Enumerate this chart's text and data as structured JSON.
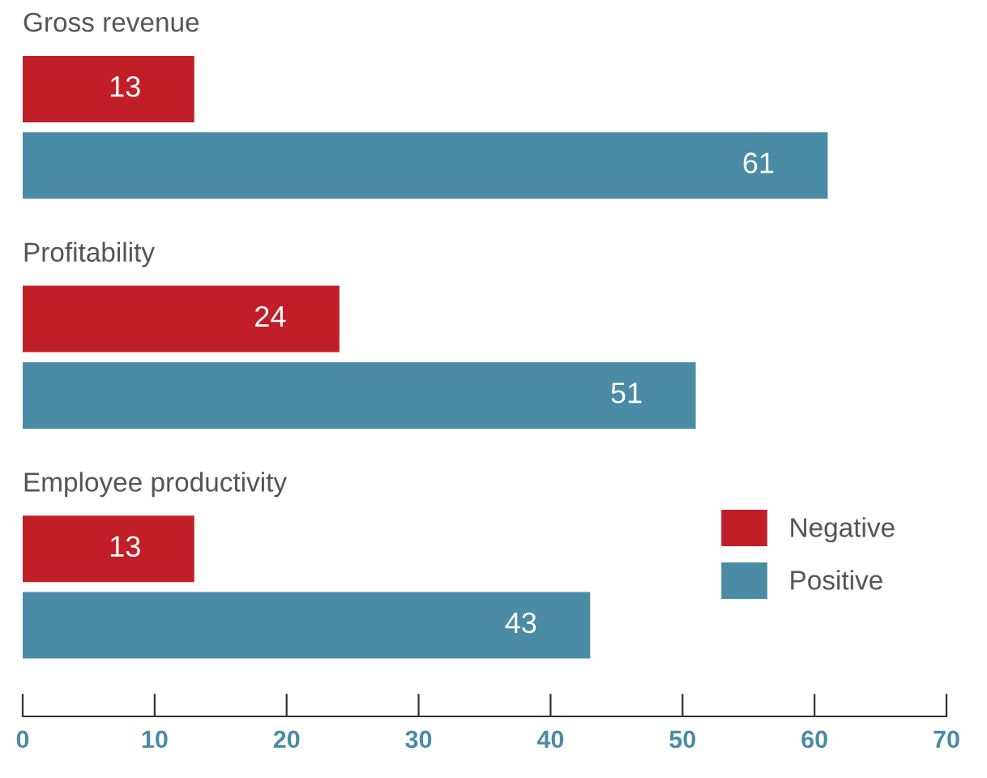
{
  "chart_data": {
    "type": "bar",
    "orientation": "horizontal",
    "categories": [
      "Gross revenue",
      "Profitability",
      "Employee productivity"
    ],
    "series": [
      {
        "name": "Negative",
        "color": "#c11f27",
        "values": [
          13,
          24,
          13
        ]
      },
      {
        "name": "Positive",
        "color": "#4a8ba6",
        "values": [
          61,
          51,
          43
        ]
      }
    ],
    "xlim": [
      0,
      70
    ],
    "xticks": [
      0,
      10,
      20,
      30,
      40,
      50,
      60,
      70
    ],
    "data_labels": true,
    "legend": "right",
    "grid": false
  }
}
